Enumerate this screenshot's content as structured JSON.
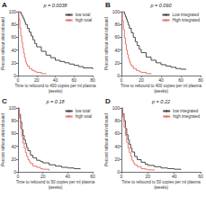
{
  "chart_data": [
    {
      "type": "line",
      "line_style": "step",
      "title": "A",
      "subtitle": "p = 0.0038",
      "xlabel": "Time to rebound to 400 copies per ml plasma\n(weeks)",
      "ylabel": "Percent without viral rebound",
      "xlim": [
        0,
        80
      ],
      "ylim": [
        0,
        100
      ],
      "xticks": [
        0,
        20,
        40,
        60,
        80
      ],
      "yticks": [
        0,
        20,
        40,
        60,
        80,
        100
      ],
      "grid": false,
      "legend": "upper right",
      "series": [
        {
          "name": "low total",
          "color": "#4a4a4a",
          "x": [
            0,
            3,
            4,
            5,
            6,
            7,
            8,
            10,
            12,
            14,
            16,
            18,
            20,
            25,
            30,
            35,
            40,
            45,
            50,
            55,
            60,
            65,
            70,
            80
          ],
          "values": [
            100,
            97,
            94,
            91,
            88,
            84,
            80,
            74,
            68,
            62,
            56,
            50,
            45,
            38,
            32,
            28,
            24,
            22,
            20,
            18,
            16,
            14,
            12,
            10
          ]
        },
        {
          "name": "high total",
          "color": "#e8756a",
          "x": [
            0,
            1,
            2,
            3,
            4,
            5,
            6,
            7,
            8,
            9,
            10,
            12,
            15,
            18,
            20,
            25,
            30
          ],
          "values": [
            100,
            88,
            74,
            62,
            52,
            43,
            35,
            28,
            22,
            18,
            15,
            11,
            8,
            6,
            5,
            3,
            2
          ]
        }
      ]
    },
    {
      "type": "line",
      "line_style": "step",
      "title": "B",
      "subtitle": "p = 0.060",
      "xlabel": "Time to rebound to 400 copies per ml plasma\n(weeks)",
      "ylabel": "Percent without viral rebound",
      "xlim": [
        0,
        80
      ],
      "ylim": [
        0,
        100
      ],
      "xticks": [
        0,
        20,
        40,
        60,
        80
      ],
      "yticks": [
        0,
        20,
        40,
        60,
        80,
        100
      ],
      "grid": false,
      "legend": "upper right",
      "series": [
        {
          "name": "Low integrated",
          "color": "#4a4a4a",
          "x": [
            0,
            3,
            4,
            5,
            6,
            7,
            8,
            10,
            12,
            14,
            16,
            18,
            20,
            25,
            30,
            35,
            40,
            45,
            50,
            55,
            60,
            65
          ],
          "values": [
            100,
            96,
            92,
            88,
            84,
            79,
            74,
            67,
            60,
            53,
            47,
            41,
            36,
            29,
            24,
            20,
            17,
            15,
            13,
            11,
            10,
            9
          ]
        },
        {
          "name": "High integrated",
          "color": "#e8756a",
          "x": [
            0,
            1,
            2,
            3,
            4,
            5,
            6,
            7,
            8,
            9,
            10,
            12,
            15,
            18,
            20,
            25,
            30
          ],
          "values": [
            100,
            86,
            72,
            59,
            49,
            40,
            33,
            27,
            22,
            18,
            15,
            11,
            8,
            6,
            5,
            3,
            2
          ]
        }
      ]
    },
    {
      "type": "line",
      "line_style": "step",
      "title": "C",
      "subtitle": "p = 0.18",
      "xlabel": "Time to rebound to 50 copies per ml plasma\n(weeks)",
      "ylabel": "Percent without viral rebound",
      "xlim": [
        0,
        60
      ],
      "ylim": [
        0,
        100
      ],
      "xticks": [
        0,
        20,
        40,
        60
      ],
      "yticks": [
        0,
        20,
        40,
        60,
        80,
        100
      ],
      "grid": false,
      "legend": "upper right",
      "series": [
        {
          "name": "low total",
          "color": "#4a4a4a",
          "x": [
            0,
            1,
            2,
            3,
            4,
            5,
            6,
            7,
            8,
            10,
            12,
            15,
            18,
            20,
            25,
            30,
            35,
            40,
            45,
            50
          ],
          "values": [
            100,
            90,
            78,
            66,
            57,
            50,
            44,
            38,
            33,
            26,
            22,
            18,
            16,
            14,
            11,
            9,
            7,
            6,
            5,
            4
          ]
        },
        {
          "name": "high total",
          "color": "#e8756a",
          "x": [
            0,
            1,
            2,
            3,
            4,
            5,
            6,
            7,
            8,
            9,
            10,
            12,
            15,
            18,
            20,
            25
          ],
          "values": [
            100,
            84,
            68,
            55,
            45,
            37,
            30,
            24,
            19,
            16,
            13,
            9,
            7,
            5,
            4,
            2
          ]
        }
      ]
    },
    {
      "type": "line",
      "line_style": "step",
      "title": "D",
      "subtitle": "p = 0.22",
      "xlabel": "Time to rebound to 50 copies per ml plasma\n(weeks)",
      "ylabel": "Percent without viral rebound",
      "xlim": [
        0,
        60
      ],
      "ylim": [
        0,
        100
      ],
      "xticks": [
        0,
        20,
        40,
        60
      ],
      "yticks": [
        0,
        20,
        40,
        60,
        80,
        100
      ],
      "grid": false,
      "legend": "upper right",
      "series": [
        {
          "name": "low integrated",
          "color": "#4a4a4a",
          "x": [
            0,
            1,
            2,
            3,
            4,
            5,
            6,
            7,
            8,
            10,
            12,
            15,
            18,
            20,
            25,
            30,
            35,
            40,
            45
          ],
          "values": [
            100,
            91,
            80,
            68,
            58,
            50,
            43,
            37,
            31,
            24,
            19,
            15,
            12,
            10,
            8,
            6,
            5,
            4,
            3
          ]
        },
        {
          "name": "high integrated",
          "color": "#e8756a",
          "x": [
            0,
            1,
            2,
            3,
            4,
            5,
            6,
            7,
            8,
            9,
            10,
            12,
            15,
            18,
            20,
            25
          ],
          "values": [
            100,
            86,
            70,
            57,
            46,
            37,
            30,
            24,
            18,
            14,
            11,
            8,
            5,
            4,
            3,
            2
          ]
        }
      ]
    }
  ]
}
